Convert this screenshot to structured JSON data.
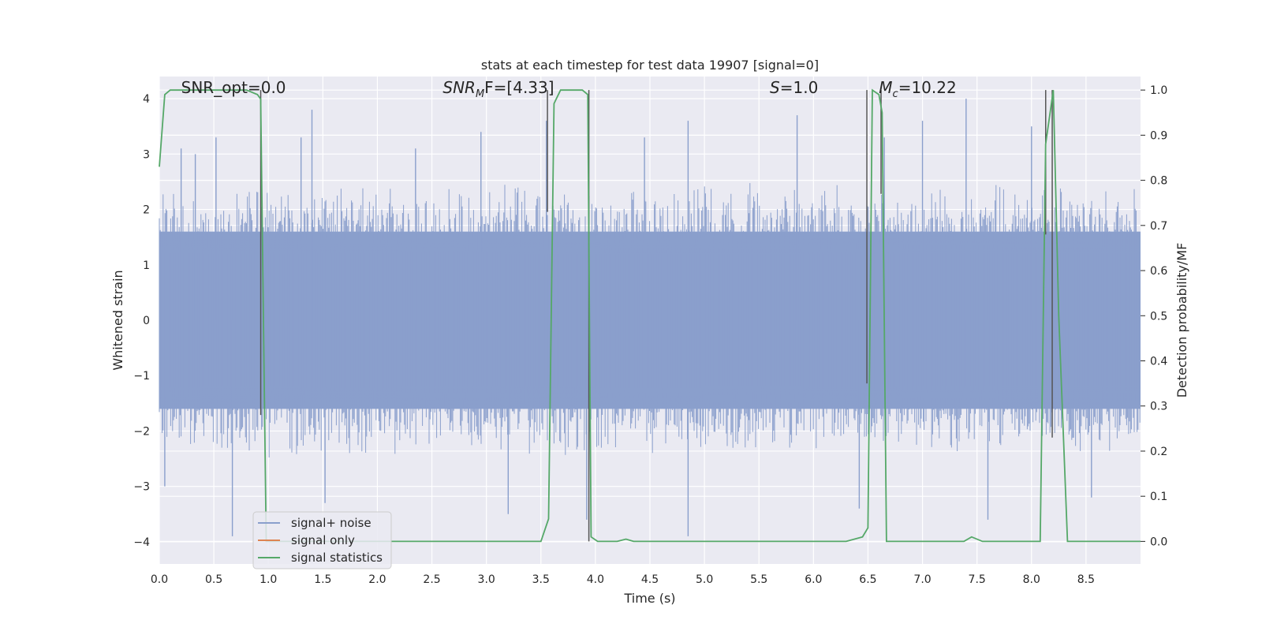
{
  "chart_data": {
    "type": "line",
    "title": "stats at each timestep for test data 19907 [signal=0]",
    "xlabel": "Time (s)",
    "ylabel_left": "Whitened strain",
    "ylabel_right": "Detection probability/MF",
    "xlim": [
      0.0,
      9.0
    ],
    "ylim_left": [
      -4.4,
      4.4
    ],
    "ylim_right": [
      -0.05,
      1.03
    ],
    "x_ticks": [
      0.0,
      0.5,
      1.0,
      1.5,
      2.0,
      2.5,
      3.0,
      3.5,
      4.0,
      4.5,
      5.0,
      5.5,
      6.0,
      6.5,
      7.0,
      7.5,
      8.0,
      8.5
    ],
    "x_tick_labels": [
      "0.0",
      "0.5",
      "1.0",
      "1.5",
      "2.0",
      "2.5",
      "3.0",
      "3.5",
      "4.0",
      "4.5",
      "5.0",
      "5.5",
      "6.0",
      "6.5",
      "7.0",
      "7.5",
      "8.0",
      "8.5"
    ],
    "y_ticks_left": [
      -4,
      -3,
      -2,
      -1,
      0,
      1,
      2,
      3,
      4
    ],
    "y_tick_labels_left": [
      "−4",
      "−3",
      "−2",
      "−1",
      "0",
      "1",
      "2",
      "3",
      "4"
    ],
    "y_ticks_right": [
      0.0,
      0.1,
      0.2,
      0.3,
      0.4,
      0.5,
      0.6,
      0.7,
      0.8,
      0.9,
      1.0
    ],
    "y_tick_labels_right": [
      "0.0",
      "0.1",
      "0.2",
      "0.3",
      "0.4",
      "0.5",
      "0.6",
      "0.7",
      "0.8",
      "0.9",
      "1.0"
    ],
    "grid": true,
    "background_color": "#eaeaf2",
    "annotations": [
      {
        "kind": "snr_opt",
        "text": "SNR_opt=0.0",
        "x": 0.2,
        "y": 4.1
      },
      {
        "kind": "snr_mf",
        "sym": "SNR",
        "sub": "M",
        "rest": "F=[4.33]",
        "x": 2.6,
        "y": 4.1
      },
      {
        "kind": "s",
        "sym": "S",
        "rest": "=1.0",
        "x": 5.6,
        "y": 4.1
      },
      {
        "kind": "mc",
        "sym": "M",
        "sub": "c",
        "rest": "=10.22",
        "x": 6.6,
        "y": 4.1
      }
    ],
    "legend": {
      "placement": "lower-left",
      "entries": [
        {
          "label": "signal+ noise",
          "color": "#8a9fcc"
        },
        {
          "label": "signal only",
          "color": "#dd8452"
        },
        {
          "label": "signal statistics",
          "color": "#55a868"
        }
      ]
    },
    "noise": {
      "name": "signal+ noise",
      "color": "#8a9fcc",
      "core_abs": 1.6,
      "envelope_low": 1.2,
      "envelope_high": 2.5,
      "spikes": [
        {
          "x": 0.2,
          "y": 3.1
        },
        {
          "x": 0.33,
          "y": 3.0
        },
        {
          "x": 0.52,
          "y": 3.3
        },
        {
          "x": 1.3,
          "y": 3.3
        },
        {
          "x": 1.4,
          "y": 3.8
        },
        {
          "x": 2.35,
          "y": 3.1
        },
        {
          "x": 2.95,
          "y": 3.4
        },
        {
          "x": 3.55,
          "y": 3.6
        },
        {
          "x": 4.45,
          "y": 3.3
        },
        {
          "x": 4.85,
          "y": 3.6
        },
        {
          "x": 5.85,
          "y": 3.7
        },
        {
          "x": 6.65,
          "y": 3.3
        },
        {
          "x": 7.0,
          "y": 3.6
        },
        {
          "x": 7.4,
          "y": 4.0
        },
        {
          "x": 8.0,
          "y": 3.5
        },
        {
          "x": 0.05,
          "y": -3.0
        },
        {
          "x": 0.67,
          "y": -3.9
        },
        {
          "x": 1.52,
          "y": -3.3
        },
        {
          "x": 3.2,
          "y": -3.5
        },
        {
          "x": 3.92,
          "y": -3.6
        },
        {
          "x": 4.85,
          "y": -3.9
        },
        {
          "x": 6.42,
          "y": -3.4
        },
        {
          "x": 7.6,
          "y": -3.6
        },
        {
          "x": 8.55,
          "y": -3.2
        }
      ]
    },
    "mf_markers": {
      "color": "#555555",
      "x": [
        0.93,
        3.56,
        3.94,
        6.49,
        6.62,
        8.13,
        8.19
      ],
      "y_top": 1.0,
      "y_bottom": [
        0.28,
        0.73,
        0.0,
        0.35,
        0.77,
        0.68,
        0.23
      ]
    },
    "series": [
      {
        "name": "signal statistics",
        "color": "#55a868",
        "axis": "right",
        "x": [
          0.0,
          0.05,
          0.1,
          0.15,
          0.2,
          0.3,
          0.4,
          0.5,
          0.6,
          0.7,
          0.8,
          0.9,
          0.93,
          0.98,
          1.05,
          1.2,
          1.5,
          2.0,
          2.5,
          3.0,
          3.3,
          3.5,
          3.57,
          3.62,
          3.68,
          3.73,
          3.78,
          3.83,
          3.88,
          3.93,
          3.96,
          4.02,
          4.1,
          4.2,
          4.28,
          4.35,
          4.5,
          5.0,
          5.5,
          6.0,
          6.3,
          6.45,
          6.5,
          6.54,
          6.6,
          6.63,
          6.67,
          6.72,
          6.9,
          7.1,
          7.3,
          7.38,
          7.45,
          7.55,
          7.7,
          7.9,
          8.08,
          8.13,
          8.2,
          8.25,
          8.33,
          8.5,
          8.7,
          9.0
        ],
        "y": [
          0.83,
          0.99,
          1.0,
          1.0,
          1.0,
          1.0,
          1.0,
          1.0,
          1.0,
          1.0,
          1.0,
          0.99,
          0.98,
          0.0,
          0.0,
          0.0,
          0.0,
          0.0,
          0.0,
          0.0,
          0.0,
          0.0,
          0.05,
          0.97,
          1.0,
          1.0,
          1.0,
          1.0,
          1.0,
          0.99,
          0.01,
          0.0,
          0.0,
          0.0,
          0.005,
          0.0,
          0.0,
          0.0,
          0.0,
          0.0,
          0.0,
          0.01,
          0.03,
          1.0,
          0.99,
          0.95,
          0.0,
          0.0,
          0.0,
          0.0,
          0.0,
          0.0,
          0.01,
          0.0,
          0.0,
          0.0,
          0.0,
          0.88,
          1.0,
          0.5,
          0.0,
          0.0,
          0.0,
          0.0
        ]
      }
    ]
  }
}
